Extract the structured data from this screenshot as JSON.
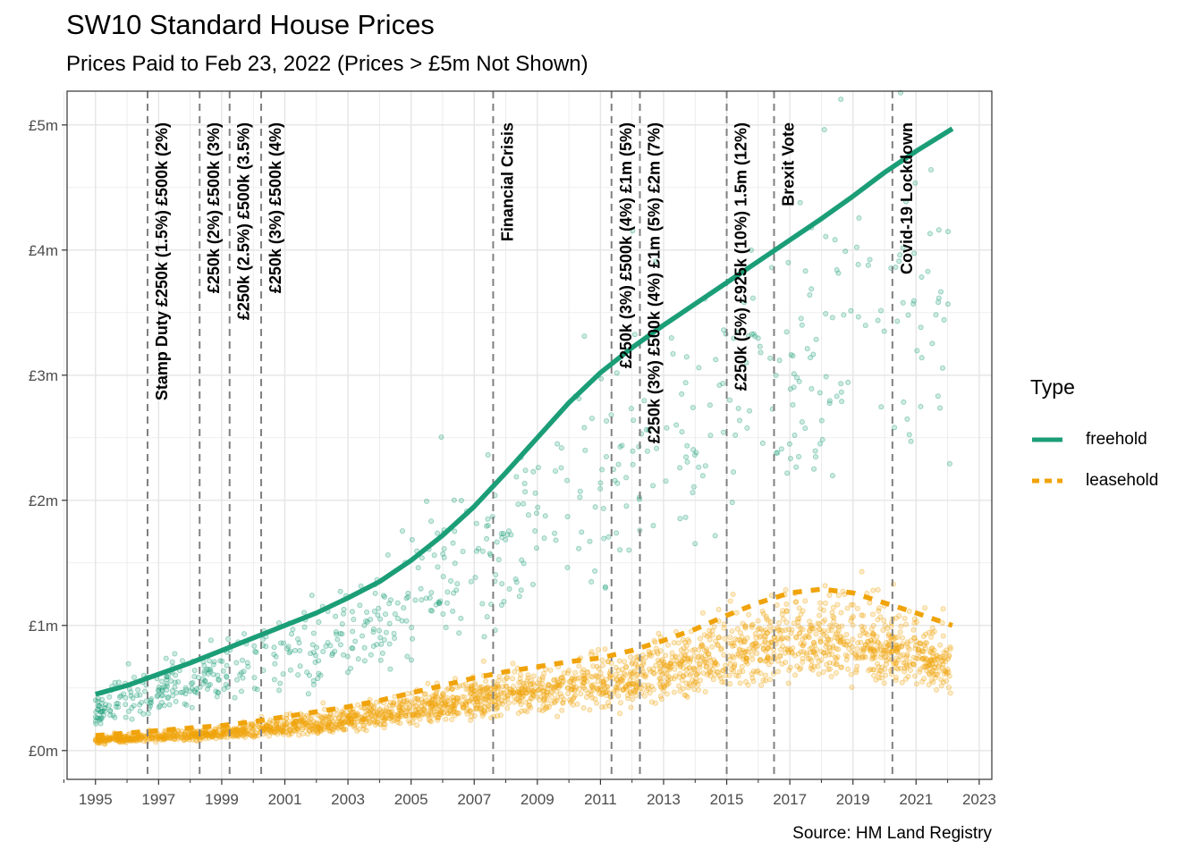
{
  "title": "SW10 Standard House Prices",
  "subtitle": "Prices Paid to Feb 23, 2022 (Prices > £5m Not Shown)",
  "caption": "Source: HM Land Registry",
  "colors": {
    "freehold": "#1b9e77",
    "leasehold": "#f0a30a",
    "vline": "#808080",
    "grid": "#e5e5e5",
    "panel_border": "#333333"
  },
  "chart_data": {
    "type": "scatter",
    "xlim": [
      1994.1,
      2023.4
    ],
    "ylim": [
      -0.23,
      5.27
    ],
    "x_ticks": [
      1995,
      1997,
      1999,
      2001,
      2003,
      2005,
      2007,
      2009,
      2011,
      2013,
      2015,
      2017,
      2019,
      2021,
      2023
    ],
    "x_tick_labels": [
      "1995",
      "1997",
      "1999",
      "2001",
      "2003",
      "2005",
      "2007",
      "2009",
      "2011",
      "2013",
      "2015",
      "2017",
      "2019",
      "2021",
      "2023"
    ],
    "y_ticks": [
      0,
      1,
      2,
      3,
      4,
      5
    ],
    "y_tick_labels": [
      "£0m",
      "£1m",
      "£2m",
      "£3m",
      "£4m",
      "£5m"
    ],
    "grid": true,
    "legend": {
      "title": "Type",
      "position": "right",
      "entries": [
        "freehold",
        "leasehold"
      ]
    },
    "series": [
      {
        "name": "freehold",
        "line_style": "solid",
        "smooth_x": [
          1995,
          1996,
          1997,
          1998,
          1999,
          2000,
          2001,
          2002,
          2003,
          2004,
          2005,
          2006,
          2007,
          2008,
          2009,
          2010,
          2011,
          2012,
          2013,
          2014,
          2015,
          2016,
          2017,
          2018,
          2019,
          2020,
          2021,
          2022.15
        ],
        "smooth_y": [
          0.45,
          0.52,
          0.61,
          0.7,
          0.8,
          0.9,
          1.0,
          1.1,
          1.22,
          1.35,
          1.52,
          1.72,
          1.95,
          2.22,
          2.5,
          2.78,
          3.02,
          3.22,
          3.4,
          3.57,
          3.74,
          3.91,
          4.08,
          4.25,
          4.43,
          4.62,
          4.79,
          4.97
        ]
      },
      {
        "name": "leasehold",
        "line_style": "dashed",
        "smooth_x": [
          1995,
          1996,
          1997,
          1998,
          1999,
          2000,
          2001,
          2002,
          2003,
          2004,
          2005,
          2006,
          2007,
          2008,
          2009,
          2010,
          2011,
          2012,
          2013,
          2014,
          2015,
          2016,
          2017,
          2018,
          2019,
          2020,
          2021,
          2022.15
        ],
        "smooth_y": [
          0.12,
          0.14,
          0.16,
          0.18,
          0.2,
          0.23,
          0.27,
          0.31,
          0.35,
          0.4,
          0.46,
          0.52,
          0.58,
          0.63,
          0.67,
          0.71,
          0.74,
          0.8,
          0.88,
          0.97,
          1.08,
          1.18,
          1.26,
          1.29,
          1.26,
          1.18,
          1.1,
          1.0
        ]
      }
    ],
    "events": [
      {
        "x": 1996.65,
        "label": "Stamp Duty £250k (1.5%) £500k (2%)"
      },
      {
        "x": 1998.3,
        "label": "£250k (2%) £500k (3%)"
      },
      {
        "x": 1999.25,
        "label": "£250k (2.5%) £500k (3.5%)"
      },
      {
        "x": 2000.25,
        "label": "£250k (3%) £500k (4%)"
      },
      {
        "x": 2007.6,
        "label": "Financial Crisis"
      },
      {
        "x": 2011.35,
        "label": "£250k (3%) £500k (4%) £1m (5%)"
      },
      {
        "x": 2012.25,
        "label": "£250k (3%) £500k (4%) £1m (5%) £2m (7%)"
      },
      {
        "x": 2015.0,
        "label": "£250k (5%) £925k (10%) 1.5m (12%)"
      },
      {
        "x": 2016.5,
        "label": "Brexit Vote"
      },
      {
        "x": 2020.25,
        "label": "Covid-19 Lockdown"
      }
    ]
  }
}
